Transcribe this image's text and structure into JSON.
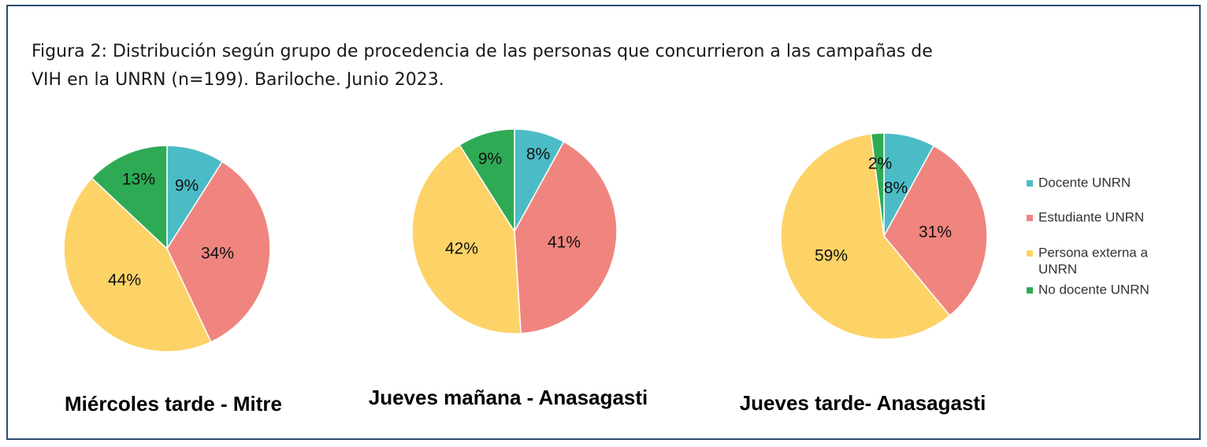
{
  "figure": {
    "title_line1": "Figura 2: Distribución según grupo de procedencia de las personas que concurrieron a las campañas de",
    "title_line2": "VIH en la UNRN (n=199). Bariloche. Junio 2023."
  },
  "legend": [
    {
      "label": [
        "Docente UNRN"
      ],
      "color": "#4bbcc6"
    },
    {
      "label": [
        "Estudiante UNRN"
      ],
      "color": "#f0857f"
    },
    {
      "label": [
        "Persona externa a",
        "UNRN"
      ],
      "color": "#fdd368"
    },
    {
      "label": [
        "No docente UNRN"
      ],
      "color": "#2eaa55"
    }
  ],
  "chart_data": [
    {
      "type": "pie",
      "title": "Miércoles  tarde - Mitre",
      "categories": [
        "Docente UNRN",
        "Estudiante UNRN",
        "Persona externa a UNRN",
        "No docente UNRN"
      ],
      "values": [
        9,
        34,
        44,
        13
      ],
      "labels": [
        "9%",
        "34%",
        "44%",
        "13%"
      ]
    },
    {
      "type": "pie",
      "title": "Jueves mañana - Anasagasti",
      "categories": [
        "Docente UNRN",
        "Estudiante UNRN",
        "Persona externa a UNRN",
        "No docente UNRN"
      ],
      "values": [
        8,
        41,
        42,
        9
      ],
      "labels": [
        "8%",
        "41%",
        "42%",
        "9%"
      ]
    },
    {
      "type": "pie",
      "title": "Jueves tarde- Anasagasti",
      "categories": [
        "Docente UNRN",
        "Estudiante UNRN",
        "Persona externa a UNRN",
        "No docente UNRN"
      ],
      "values": [
        8,
        31,
        59,
        2
      ],
      "labels": [
        "8%",
        "31%",
        "59%",
        "2%"
      ]
    }
  ]
}
